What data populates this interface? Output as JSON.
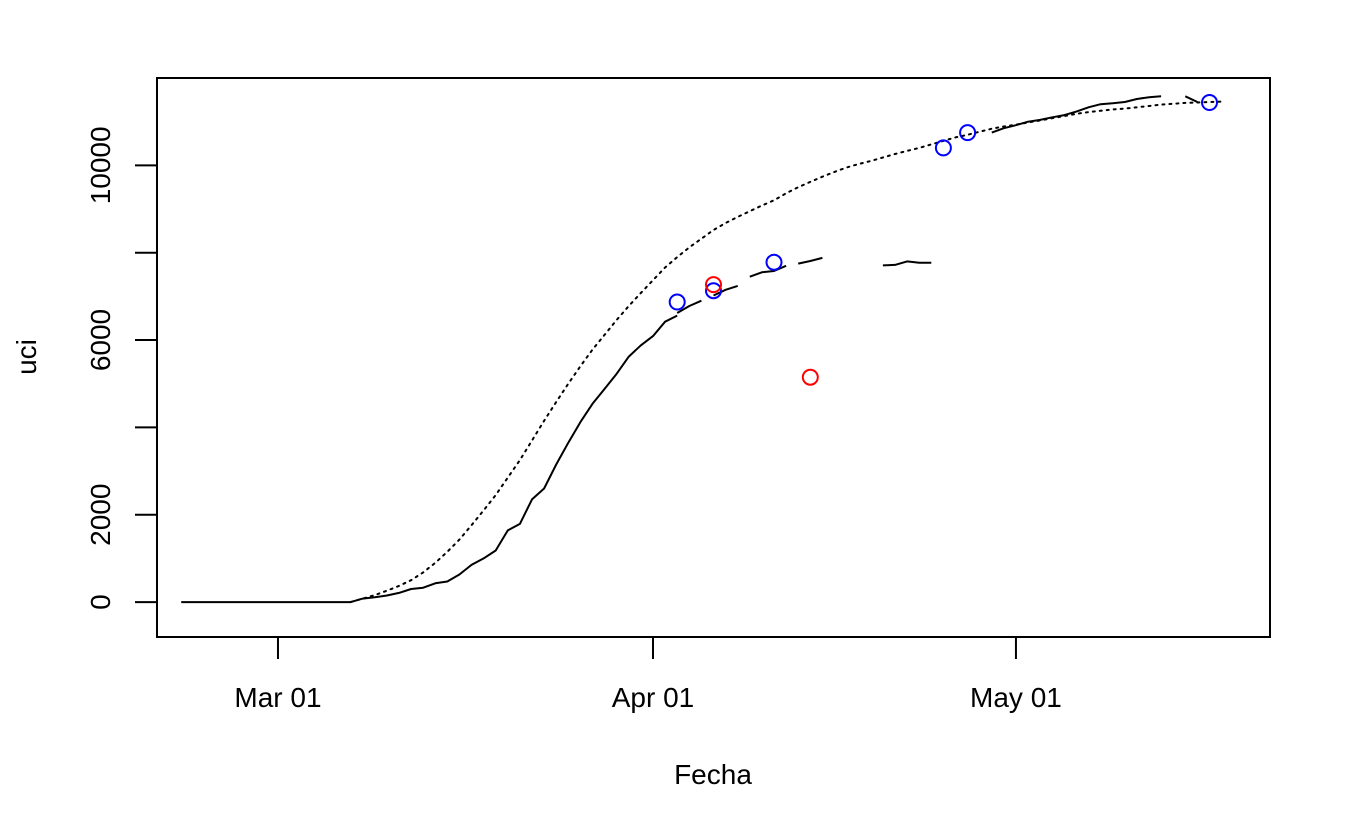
{
  "chart_data": {
    "type": "line",
    "title": "",
    "xlabel": "Fecha",
    "ylabel": "uci",
    "x_domain": [
      "2020-02-20",
      "2020-05-22"
    ],
    "ylim": [
      -800,
      12000
    ],
    "x_ticks": [
      {
        "date": "2020-03-01",
        "label": "Mar 01"
      },
      {
        "date": "2020-04-01",
        "label": "Apr 01"
      },
      {
        "date": "2020-05-01",
        "label": "May 01"
      }
    ],
    "y_ticks": [
      {
        "value": 0,
        "label": "0",
        "show_label": true
      },
      {
        "value": 2000,
        "label": "2000",
        "show_label": true
      },
      {
        "value": 4000,
        "label": "4000",
        "show_label": false
      },
      {
        "value": 6000,
        "label": "6000",
        "show_label": true
      },
      {
        "value": 8000,
        "label": "8000",
        "show_label": false
      },
      {
        "value": 10000,
        "label": "10000",
        "show_label": true
      }
    ],
    "grid": false,
    "legend": "none",
    "series": [
      {
        "style": "solid",
        "color": "#000000",
        "segments": [
          [
            [
              "2020-02-22",
              0
            ],
            [
              "2020-03-01",
              0
            ],
            [
              "2020-03-06",
              0
            ],
            [
              "2020-03-07",
              0
            ],
            [
              "2020-03-08",
              80
            ],
            [
              "2020-03-09",
              110
            ],
            [
              "2020-03-10",
              150
            ],
            [
              "2020-03-11",
              210
            ],
            [
              "2020-03-12",
              300
            ],
            [
              "2020-03-13",
              330
            ],
            [
              "2020-03-14",
              430
            ],
            [
              "2020-03-15",
              470
            ],
            [
              "2020-03-16",
              630
            ],
            [
              "2020-03-17",
              850
            ],
            [
              "2020-03-18",
              1000
            ],
            [
              "2020-03-19",
              1180
            ],
            [
              "2020-03-20",
              1640
            ],
            [
              "2020-03-21",
              1790
            ],
            [
              "2020-03-22",
              2350
            ],
            [
              "2020-03-23",
              2600
            ],
            [
              "2020-03-24",
              3150
            ],
            [
              "2020-03-25",
              3650
            ],
            [
              "2020-03-26",
              4120
            ],
            [
              "2020-03-27",
              4540
            ],
            [
              "2020-03-28",
              4880
            ],
            [
              "2020-03-29",
              5230
            ],
            [
              "2020-03-30",
              5620
            ],
            [
              "2020-03-31",
              5880
            ],
            [
              "2020-04-01",
              6090
            ],
            [
              "2020-04-02",
              6420
            ],
            [
              "2020-04-03",
              6560
            ]
          ],
          [
            [
              "2020-04-03",
              6620
            ],
            [
              "2020-04-04",
              6780
            ],
            [
              "2020-04-05",
              6900
            ]
          ],
          [
            [
              "2020-04-06",
              7020
            ],
            [
              "2020-04-07",
              7150
            ],
            [
              "2020-04-08",
              7240
            ]
          ],
          [
            [
              "2020-04-09",
              7450
            ],
            [
              "2020-04-10",
              7550
            ],
            [
              "2020-04-11",
              7580
            ],
            [
              "2020-04-12",
              7700
            ]
          ],
          [
            [
              "2020-04-13",
              7750
            ],
            [
              "2020-04-14",
              7810
            ],
            [
              "2020-04-15",
              7880
            ]
          ],
          [
            [
              "2020-04-20",
              7710
            ],
            [
              "2020-04-21",
              7720
            ],
            [
              "2020-04-22",
              7800
            ],
            [
              "2020-04-23",
              7770
            ],
            [
              "2020-04-24",
              7770
            ]
          ],
          [
            [
              "2020-04-29",
              10750
            ],
            [
              "2020-04-30",
              10850
            ],
            [
              "2020-05-01",
              10920
            ],
            [
              "2020-05-02",
              11000
            ],
            [
              "2020-05-03",
              11040
            ],
            [
              "2020-05-04",
              11100
            ],
            [
              "2020-05-05",
              11150
            ],
            [
              "2020-05-06",
              11230
            ],
            [
              "2020-05-07",
              11330
            ],
            [
              "2020-05-08",
              11400
            ],
            [
              "2020-05-09",
              11420
            ],
            [
              "2020-05-10",
              11450
            ],
            [
              "2020-05-11",
              11520
            ],
            [
              "2020-05-12",
              11560
            ],
            [
              "2020-05-13",
              11580
            ]
          ],
          [
            [
              "2020-05-15",
              11580
            ],
            [
              "2020-05-16",
              11450
            ]
          ]
        ]
      },
      {
        "style": "dotted",
        "color": "#000000",
        "segments": [
          [
            [
              "2020-03-07",
              0
            ],
            [
              "2020-03-08",
              80
            ],
            [
              "2020-03-09",
              160
            ],
            [
              "2020-03-10",
              260
            ],
            [
              "2020-03-11",
              370
            ],
            [
              "2020-03-12",
              500
            ],
            [
              "2020-03-13",
              680
            ],
            [
              "2020-03-14",
              900
            ],
            [
              "2020-03-15",
              1150
            ],
            [
              "2020-03-16",
              1430
            ],
            [
              "2020-03-17",
              1760
            ],
            [
              "2020-03-18",
              2100
            ],
            [
              "2020-03-19",
              2450
            ],
            [
              "2020-03-20",
              2850
            ],
            [
              "2020-03-21",
              3250
            ],
            [
              "2020-03-22",
              3700
            ],
            [
              "2020-03-23",
              4150
            ],
            [
              "2020-03-24",
              4580
            ],
            [
              "2020-03-25",
              5000
            ],
            [
              "2020-03-26",
              5400
            ],
            [
              "2020-03-27",
              5780
            ],
            [
              "2020-03-28",
              6120
            ],
            [
              "2020-03-29",
              6460
            ],
            [
              "2020-03-30",
              6780
            ],
            [
              "2020-03-31",
              7080
            ],
            [
              "2020-04-01",
              7370
            ],
            [
              "2020-04-02",
              7660
            ],
            [
              "2020-04-03",
              7900
            ],
            [
              "2020-04-04",
              8120
            ],
            [
              "2020-04-05",
              8320
            ],
            [
              "2020-04-06",
              8520
            ],
            [
              "2020-04-07",
              8680
            ],
            [
              "2020-04-08",
              8820
            ],
            [
              "2020-04-09",
              8950
            ],
            [
              "2020-04-10",
              9080
            ],
            [
              "2020-04-11",
              9200
            ],
            [
              "2020-04-12",
              9360
            ],
            [
              "2020-04-13",
              9500
            ],
            [
              "2020-04-14",
              9620
            ],
            [
              "2020-04-15",
              9740
            ],
            [
              "2020-04-16",
              9850
            ],
            [
              "2020-04-17",
              9950
            ],
            [
              "2020-04-18",
              10030
            ],
            [
              "2020-04-19",
              10100
            ],
            [
              "2020-04-20",
              10180
            ],
            [
              "2020-04-21",
              10260
            ],
            [
              "2020-04-22",
              10330
            ],
            [
              "2020-04-23",
              10400
            ],
            [
              "2020-04-24",
              10480
            ],
            [
              "2020-04-25",
              10560
            ],
            [
              "2020-04-26",
              10640
            ],
            [
              "2020-04-27",
              10700
            ],
            [
              "2020-04-28",
              10770
            ],
            [
              "2020-04-29",
              10840
            ],
            [
              "2020-04-30",
              10890
            ],
            [
              "2020-05-01",
              10930
            ],
            [
              "2020-05-02",
              10980
            ],
            [
              "2020-05-03",
              11030
            ],
            [
              "2020-05-04",
              11080
            ],
            [
              "2020-05-05",
              11130
            ],
            [
              "2020-05-06",
              11180
            ],
            [
              "2020-05-07",
              11220
            ],
            [
              "2020-05-08",
              11250
            ],
            [
              "2020-05-09",
              11280
            ],
            [
              "2020-05-10",
              11300
            ],
            [
              "2020-05-11",
              11330
            ],
            [
              "2020-05-12",
              11360
            ],
            [
              "2020-05-13",
              11390
            ],
            [
              "2020-05-14",
              11410
            ],
            [
              "2020-05-15",
              11430
            ],
            [
              "2020-05-16",
              11440
            ],
            [
              "2020-05-17",
              11450
            ],
            [
              "2020-05-18",
              11460
            ]
          ]
        ]
      }
    ],
    "points": [
      {
        "x": "2020-04-03",
        "y": 6870,
        "color": "#0000ff"
      },
      {
        "x": "2020-04-06",
        "y": 7130,
        "color": "#0000ff"
      },
      {
        "x": "2020-04-06",
        "y": 7270,
        "color": "#ff0000"
      },
      {
        "x": "2020-04-11",
        "y": 7780,
        "color": "#0000ff"
      },
      {
        "x": "2020-04-14",
        "y": 5150,
        "color": "#ff0000"
      },
      {
        "x": "2020-04-25",
        "y": 10400,
        "color": "#0000ff"
      },
      {
        "x": "2020-04-27",
        "y": 10750,
        "color": "#0000ff"
      },
      {
        "x": "2020-05-17",
        "y": 11440,
        "color": "#0000ff"
      }
    ]
  }
}
